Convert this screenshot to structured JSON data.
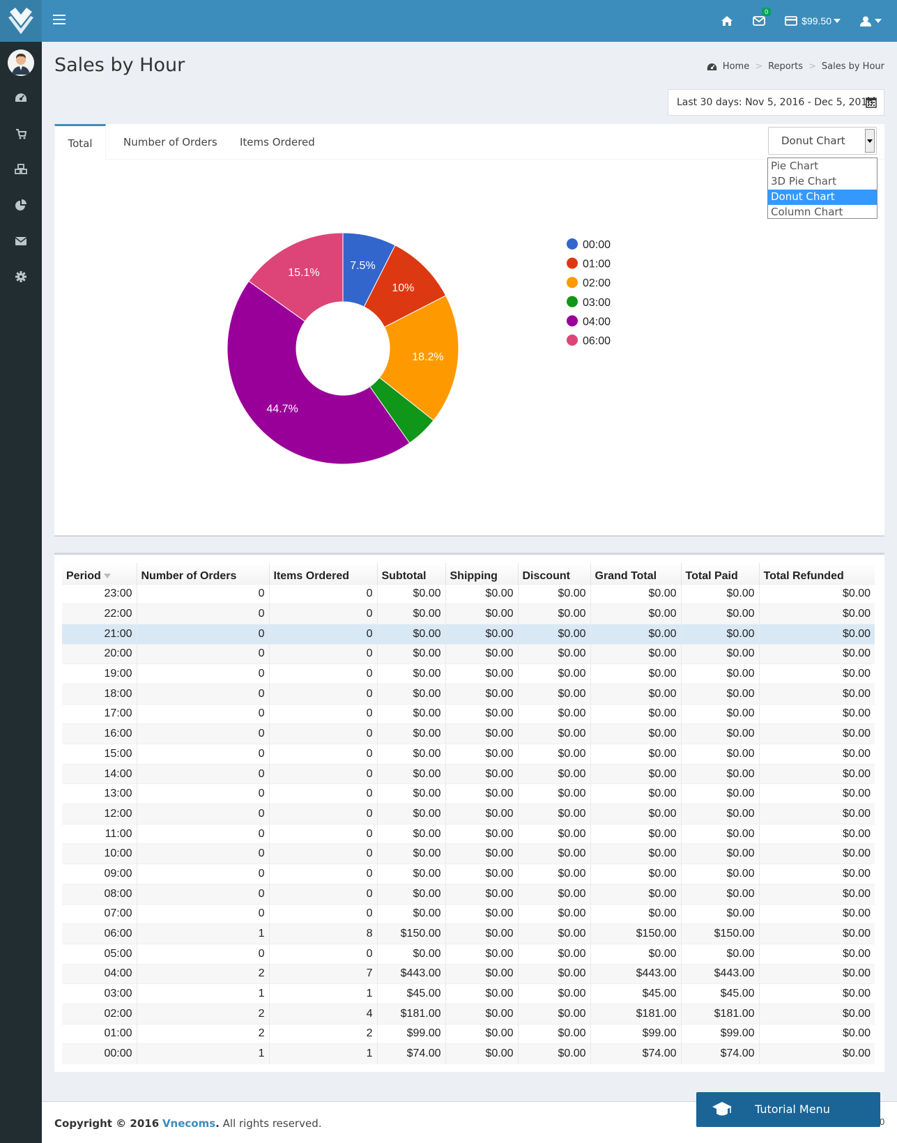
{
  "topbar": {
    "balance": "$99.50",
    "messages_count": "0"
  },
  "header": {
    "title": "Sales by Hour",
    "breadcrumb": [
      "Home",
      "Reports",
      "Sales by Hour"
    ],
    "date_range": "Last 30 days: Nov 5, 2016 - Dec 5, 2016"
  },
  "chart_panel": {
    "tabs": [
      "Total",
      "Number of Orders",
      "Items Ordered"
    ],
    "active_tab": "Total",
    "chart_type_selected": "Donut Chart",
    "chart_type_options": [
      "Pie Chart",
      "3D Pie Chart",
      "Donut Chart",
      "Column Chart"
    ]
  },
  "chart_data": {
    "type": "pie",
    "donut": true,
    "categories": [
      "00:00",
      "01:00",
      "02:00",
      "03:00",
      "04:00",
      "06:00"
    ],
    "values": [
      74,
      99,
      181,
      45,
      443,
      150
    ],
    "slice_labels": [
      "7.5%",
      "10%",
      "18.2%",
      "",
      "44.7%",
      "15.1%"
    ],
    "colors": [
      "#3366cc",
      "#dc3912",
      "#ff9900",
      "#109618",
      "#990099",
      "#dd4477"
    ],
    "legend_position": "right"
  },
  "table": {
    "columns": [
      "Period",
      "Number of Orders",
      "Items Ordered",
      "Subtotal",
      "Shipping",
      "Discount",
      "Grand Total",
      "Total Paid",
      "Total Refunded"
    ],
    "rows": [
      [
        "23:00",
        "0",
        "0",
        "$0.00",
        "$0.00",
        "$0.00",
        "$0.00",
        "$0.00",
        "$0.00"
      ],
      [
        "22:00",
        "0",
        "0",
        "$0.00",
        "$0.00",
        "$0.00",
        "$0.00",
        "$0.00",
        "$0.00"
      ],
      [
        "21:00",
        "0",
        "0",
        "$0.00",
        "$0.00",
        "$0.00",
        "$0.00",
        "$0.00",
        "$0.00"
      ],
      [
        "20:00",
        "0",
        "0",
        "$0.00",
        "$0.00",
        "$0.00",
        "$0.00",
        "$0.00",
        "$0.00"
      ],
      [
        "19:00",
        "0",
        "0",
        "$0.00",
        "$0.00",
        "$0.00",
        "$0.00",
        "$0.00",
        "$0.00"
      ],
      [
        "18:00",
        "0",
        "0",
        "$0.00",
        "$0.00",
        "$0.00",
        "$0.00",
        "$0.00",
        "$0.00"
      ],
      [
        "17:00",
        "0",
        "0",
        "$0.00",
        "$0.00",
        "$0.00",
        "$0.00",
        "$0.00",
        "$0.00"
      ],
      [
        "16:00",
        "0",
        "0",
        "$0.00",
        "$0.00",
        "$0.00",
        "$0.00",
        "$0.00",
        "$0.00"
      ],
      [
        "15:00",
        "0",
        "0",
        "$0.00",
        "$0.00",
        "$0.00",
        "$0.00",
        "$0.00",
        "$0.00"
      ],
      [
        "14:00",
        "0",
        "0",
        "$0.00",
        "$0.00",
        "$0.00",
        "$0.00",
        "$0.00",
        "$0.00"
      ],
      [
        "13:00",
        "0",
        "0",
        "$0.00",
        "$0.00",
        "$0.00",
        "$0.00",
        "$0.00",
        "$0.00"
      ],
      [
        "12:00",
        "0",
        "0",
        "$0.00",
        "$0.00",
        "$0.00",
        "$0.00",
        "$0.00",
        "$0.00"
      ],
      [
        "11:00",
        "0",
        "0",
        "$0.00",
        "$0.00",
        "$0.00",
        "$0.00",
        "$0.00",
        "$0.00"
      ],
      [
        "10:00",
        "0",
        "0",
        "$0.00",
        "$0.00",
        "$0.00",
        "$0.00",
        "$0.00",
        "$0.00"
      ],
      [
        "09:00",
        "0",
        "0",
        "$0.00",
        "$0.00",
        "$0.00",
        "$0.00",
        "$0.00",
        "$0.00"
      ],
      [
        "08:00",
        "0",
        "0",
        "$0.00",
        "$0.00",
        "$0.00",
        "$0.00",
        "$0.00",
        "$0.00"
      ],
      [
        "07:00",
        "0",
        "0",
        "$0.00",
        "$0.00",
        "$0.00",
        "$0.00",
        "$0.00",
        "$0.00"
      ],
      [
        "06:00",
        "1",
        "8",
        "$150.00",
        "$0.00",
        "$0.00",
        "$150.00",
        "$150.00",
        "$0.00"
      ],
      [
        "05:00",
        "0",
        "0",
        "$0.00",
        "$0.00",
        "$0.00",
        "$0.00",
        "$0.00",
        "$0.00"
      ],
      [
        "04:00",
        "2",
        "7",
        "$443.00",
        "$0.00",
        "$0.00",
        "$443.00",
        "$443.00",
        "$0.00"
      ],
      [
        "03:00",
        "1",
        "1",
        "$45.00",
        "$0.00",
        "$0.00",
        "$45.00",
        "$45.00",
        "$0.00"
      ],
      [
        "02:00",
        "2",
        "4",
        "$181.00",
        "$0.00",
        "$0.00",
        "$181.00",
        "$181.00",
        "$0.00"
      ],
      [
        "01:00",
        "2",
        "2",
        "$99.00",
        "$0.00",
        "$0.00",
        "$99.00",
        "$99.00",
        "$0.00"
      ],
      [
        "00:00",
        "1",
        "1",
        "$74.00",
        "$0.00",
        "$0.00",
        "$74.00",
        "$74.00",
        "$0.00"
      ]
    ],
    "highlighted_row": "21:00"
  },
  "footer": {
    "copyright_prefix": "Copyright © 2016",
    "company": "Vnecoms",
    "suffix": ". All rights reserved.",
    "edge_text": "0"
  },
  "tutorial": {
    "label": "Tutorial Menu"
  }
}
